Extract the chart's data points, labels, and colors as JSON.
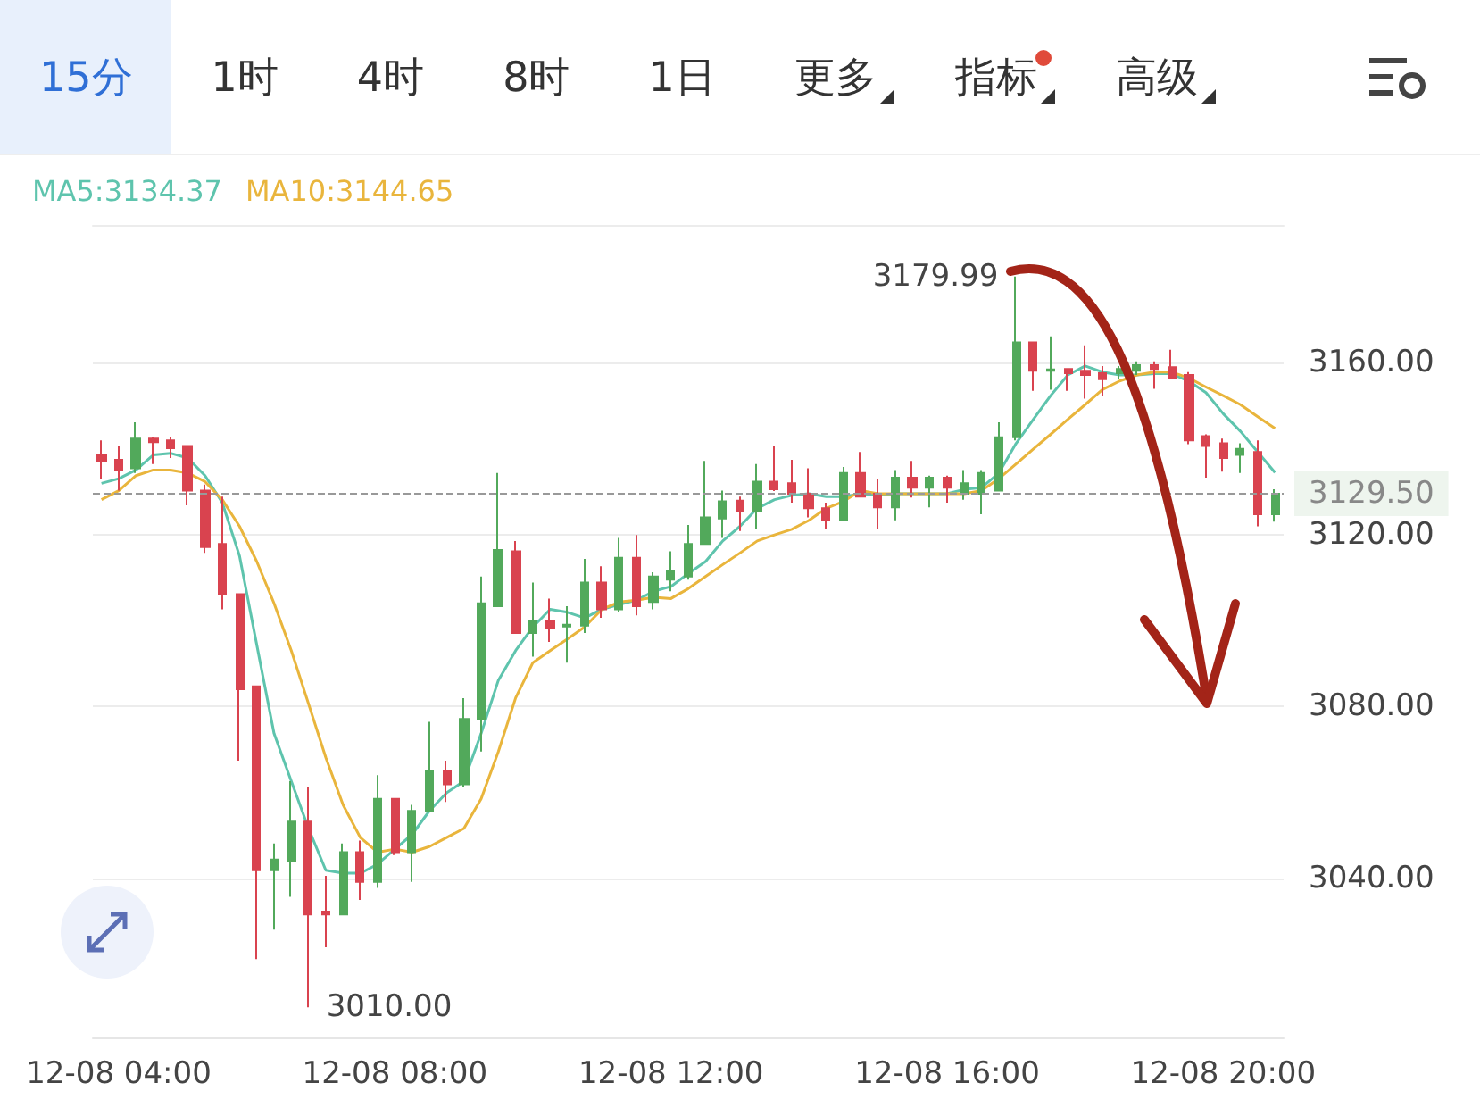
{
  "chart_data": {
    "type": "candlestick",
    "annotations": [
      "15分",
      "1时",
      "4时",
      "8时",
      "1日",
      "更多",
      "指标",
      "高级",
      "3179.99",
      "3010.00"
    ],
    "categories": [
      null,
      "12-08 04:00",
      null,
      null,
      null,
      null,
      null,
      null,
      null,
      null,
      null,
      null,
      null,
      null,
      null,
      null,
      null,
      "12-08 08:00",
      null,
      null,
      null,
      null,
      null,
      null,
      null,
      null,
      null,
      null,
      null,
      null,
      null,
      null,
      null,
      "12-08 12:00",
      null,
      null,
      null,
      null,
      null,
      null,
      null,
      null,
      null,
      null,
      null,
      null,
      null,
      null,
      null,
      "12-08 16:00",
      null,
      null,
      null,
      null,
      null,
      null,
      null,
      null,
      null,
      null,
      null,
      null,
      null,
      null,
      null,
      "12-08 20:00",
      null,
      null,
      null
    ],
    "ohlc": [
      [
        3138.5,
        3141.9,
        3133.0,
        3137.1
      ],
      [
        3137.4,
        3140.6,
        3130.2,
        3135.0
      ],
      [
        3135.4,
        3146.1,
        3134.3,
        3142.3
      ],
      [
        3142.3,
        3142.6,
        3136.4,
        3141.5
      ],
      [
        3141.9,
        3142.6,
        3137.8,
        3140.1
      ],
      [
        3140.6,
        3140.6,
        3126.8,
        3130.2
      ],
      [
        3130.2,
        3131.6,
        3115.7,
        3117.1
      ],
      [
        3117.8,
        3128.8,
        3102.6,
        3106.1
      ],
      [
        3106.1,
        3106.1,
        3067.4,
        3084.0
      ],
      [
        3084.7,
        3084.7,
        3021.2,
        3041.9
      ],
      [
        3041.9,
        3048.1,
        3028.1,
        3044.4
      ],
      [
        3044.0,
        3062.6,
        3035.7,
        3053.2
      ],
      [
        3053.2,
        3061.2,
        3010,
        3031.6
      ],
      [
        3032.3,
        3040.6,
        3024.0,
        3031.6
      ],
      [
        3031.6,
        3048.1,
        3031.6,
        3046.1
      ],
      [
        3046.1,
        3048.8,
        3035.0,
        3039.2
      ],
      [
        3039.2,
        3064.0,
        3037.8,
        3058.5
      ],
      [
        3058.5,
        3058.5,
        3045.4,
        3046.1
      ],
      [
        3046.1,
        3057.1,
        3039.2,
        3055.7
      ],
      [
        3055.7,
        3076.4,
        3055.7,
        3065.1
      ],
      [
        3065.1,
        3067.4,
        3057.8,
        3061.9
      ],
      [
        3061.9,
        3081.9,
        3061.2,
        3077.1
      ],
      [
        3077.1,
        3110.2,
        3069.5,
        3104.0
      ],
      [
        3103.3,
        3134.3,
        3103.3,
        3116.4
      ],
      [
        3116.1,
        3118.5,
        3097.1,
        3097.1
      ],
      [
        3097.1,
        3108.8,
        3091.6,
        3099.9
      ],
      [
        3099.9,
        3105.1,
        3095.0,
        3098.2
      ],
      [
        3098.6,
        3103.3,
        3090.2,
        3099.0
      ],
      [
        3098.8,
        3114.3,
        3097.1,
        3108.8
      ],
      [
        3108.8,
        3112.6,
        3100.6,
        3102.6
      ],
      [
        3102.6,
        3119.2,
        3101.9,
        3114.6
      ],
      [
        3114.6,
        3119.9,
        3101.2,
        3103.3
      ],
      [
        3104.3,
        3111.2,
        3102.6,
        3110.2
      ],
      [
        3109.5,
        3116.1,
        3106.8,
        3111.6
      ],
      [
        3110.2,
        3122.2,
        3109.5,
        3117.8
      ],
      [
        3117.8,
        3137.1,
        3117.8,
        3124.0
      ],
      [
        3123.7,
        3130.2,
        3119.2,
        3127.7
      ],
      [
        3127.9,
        3128.8,
        3120.8,
        3125.4
      ],
      [
        3125.4,
        3136.4,
        3121.2,
        3132.3
      ],
      [
        3132.3,
        3140.6,
        3130.1,
        3130.5
      ],
      [
        3131.9,
        3137.4,
        3127.4,
        3129.5
      ],
      [
        3129.5,
        3135.4,
        3124.0,
        3126.1
      ],
      [
        3126.1,
        3127.4,
        3121.2,
        3123.3
      ],
      [
        3123.3,
        3135.7,
        3123.3,
        3134.3
      ],
      [
        3134.3,
        3139.2,
        3128.8,
        3128.8
      ],
      [
        3129.5,
        3133.0,
        3121.2,
        3126.3
      ],
      [
        3126.3,
        3135.0,
        3123.3,
        3133.2
      ],
      [
        3133.2,
        3137.1,
        3128.6,
        3130.9
      ],
      [
        3130.9,
        3133.7,
        3126.3,
        3133.2
      ],
      [
        3133.2,
        3133.7,
        3127.4,
        3130.9
      ],
      [
        3129.5,
        3135.0,
        3128.1,
        3131.9
      ],
      [
        3129.5,
        3135.0,
        3124.7,
        3134.3
      ],
      [
        3130.2,
        3146.1,
        3130.2,
        3142.6
      ],
      [
        3142.6,
        3179.99,
        3141.9,
        3164.7
      ],
      [
        3164.7,
        3164.7,
        3153.4,
        3158.1
      ],
      [
        3158.1,
        3166.1,
        3153.7,
        3158.4
      ],
      [
        3158.5,
        3158.5,
        3153.4,
        3157.5
      ],
      [
        3158.1,
        3164.0,
        3151.6,
        3157.1
      ],
      [
        3157.5,
        3159.2,
        3152.3,
        3156.1
      ],
      [
        3157.5,
        3159.2,
        3156.1,
        3158.5
      ],
      [
        3158.1,
        3160.3,
        3157.1,
        3159.4
      ],
      [
        3159.4,
        3160.3,
        3153.9,
        3158.5
      ],
      [
        3158.9,
        3163.0,
        3156.1,
        3156.4
      ],
      [
        3157.1,
        3157.8,
        3141.0,
        3141.9
      ],
      [
        3142.9,
        3143.3,
        3133.2,
        3140.6
      ],
      [
        3141.2,
        3142.3,
        3134.6,
        3137.8
      ],
      [
        3138.5,
        3141.2,
        3134.3,
        3139.9
      ],
      [
        3139.2,
        3141.9,
        3121.9,
        3124.7
      ],
      [
        3124.7,
        3130.5,
        3123.0,
        3129.5
      ]
    ],
    "colors": [
      "#d9434f",
      "#d9434f",
      "#52a95b",
      "#d9434f",
      "#d9434f",
      "#d9434f",
      "#d9434f",
      "#d9434f",
      "#d9434f",
      "#d9434f",
      "#52a95b",
      "#52a95b",
      "#d9434f",
      "#d9434f",
      "#52a95b",
      "#d9434f",
      "#52a95b",
      "#d9434f",
      "#52a95b",
      "#52a95b",
      "#d9434f",
      "#52a95b",
      "#52a95b",
      "#52a95b",
      "#d9434f",
      "#52a95b",
      "#d9434f",
      "#52a95b",
      "#52a95b",
      "#d9434f",
      "#52a95b",
      "#d9434f",
      "#52a95b",
      "#52a95b",
      "#52a95b",
      "#52a95b",
      "#52a95b",
      "#d9434f",
      "#52a95b",
      "#d9434f",
      "#d9434f",
      "#d9434f",
      "#d9434f",
      "#52a95b",
      "#d9434f",
      "#d9434f",
      "#52a95b",
      "#d9434f",
      "#52a95b",
      "#d9434f",
      "#52a95b",
      "#52a95b",
      "#52a95b",
      "#52a95b",
      "#d9434f",
      "#52a95b",
      "#d9434f",
      "#d9434f",
      "#d9434f",
      "#52a95b",
      "#52a95b",
      "#d9434f",
      "#d9434f",
      "#d9434f",
      "#d9434f",
      "#d9434f",
      "#52a95b",
      "#d9434f",
      "#52a95b"
    ],
    "series": [
      {
        "type": "line",
        "name": "MA5:3134.37",
        "color": "#5ec4ad",
        "values": [
          3131.9,
          3133.0,
          3135.0,
          3138.5,
          3138.9,
          3137.8,
          3133.7,
          3127.4,
          3115.0,
          3094.3,
          3073.7,
          3062.6,
          3051.6,
          3041.9,
          3041.2,
          3041.2,
          3043.3,
          3046.8,
          3050.2,
          3055.7,
          3059.9,
          3062.6,
          3073.7,
          3086.1,
          3093.0,
          3098.5,
          3102.6,
          3101.9,
          3100.6,
          3102.6,
          3103.7,
          3104.7,
          3106.8,
          3107.9,
          3110.9,
          3113.7,
          3118.5,
          3121.9,
          3126.1,
          3128.1,
          3129.1,
          3129.5,
          3128.8,
          3128.8,
          3129.5,
          3129.1,
          3129.5,
          3129.5,
          3129.5,
          3129.5,
          3130.5,
          3130.9,
          3134.3,
          3141.2,
          3146.8,
          3152.3,
          3157.1,
          3159.2,
          3157.8,
          3157.1,
          3157.1,
          3157.4,
          3157.4,
          3155.7,
          3153.0,
          3148.1,
          3144.0,
          3139.2,
          3134.4
        ]
      },
      {
        "type": "line",
        "name": "MA10:3144.65",
        "color": "#e9b53c",
        "values": [
          3128.1,
          3130.2,
          3133.7,
          3135.0,
          3135.0,
          3134.3,
          3132.3,
          3128.1,
          3121.9,
          3113.7,
          3104.0,
          3093.0,
          3080.6,
          3068.1,
          3057.1,
          3049.5,
          3046.1,
          3046.8,
          3046.1,
          3047.4,
          3049.5,
          3051.6,
          3058.5,
          3069.5,
          3082.0,
          3090.2,
          3093.0,
          3095.7,
          3098.5,
          3102.6,
          3104.3,
          3104.7,
          3105.4,
          3105.1,
          3107.4,
          3110.2,
          3113.0,
          3115.7,
          3118.5,
          3119.9,
          3121.2,
          3123.3,
          3126.1,
          3127.7,
          3130.2,
          3129.5,
          3129.5,
          3129.5,
          3129.5,
          3129.5,
          3129.5,
          3130.2,
          3133.0,
          3136.4,
          3139.9,
          3143.3,
          3146.8,
          3150.2,
          3153.7,
          3155.7,
          3157.1,
          3157.8,
          3157.8,
          3156.4,
          3154.3,
          3152.3,
          3150.2,
          3147.4,
          3144.7
        ]
      }
    ],
    "ylim": [
      3003,
      3192
    ],
    "yticks": [
      {
        "value": 3040,
        "label": "3040.00"
      },
      {
        "value": 3080,
        "label": "3080.00"
      },
      {
        "value": 3120,
        "label": "3120.00"
      },
      {
        "value": 3160,
        "label": "3160.00"
      }
    ],
    "ref_lines": [
      {
        "axis": "y",
        "value": 3129.5,
        "label": "3129.50",
        "color": "#999999",
        "line_style": "dashed"
      }
    ],
    "grid": "y",
    "legend": "top left",
    "marker": "none",
    "line_style": "solid"
  }
}
